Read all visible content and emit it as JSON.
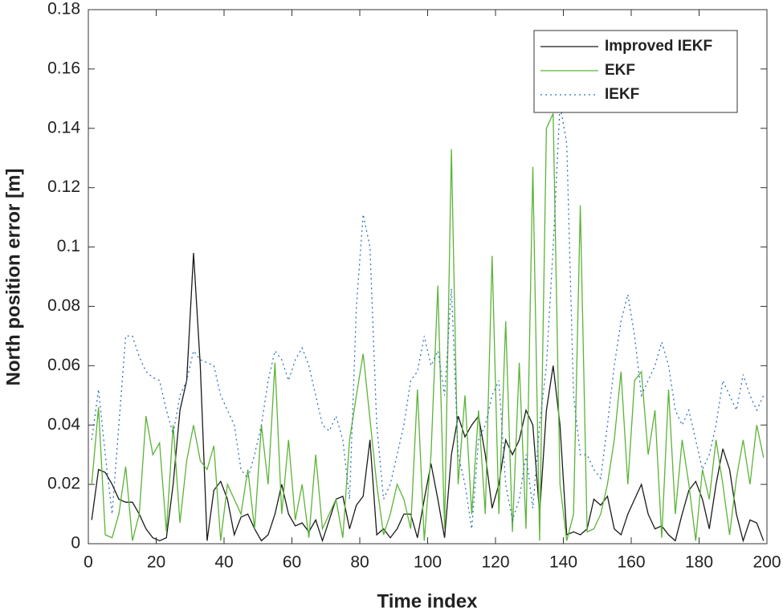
{
  "chart_data": {
    "type": "line",
    "xlabel": "Time index",
    "ylabel": "North position error [m]",
    "x": [
      1,
      3,
      5,
      7,
      9,
      11,
      13,
      15,
      17,
      19,
      21,
      23,
      25,
      27,
      29,
      31,
      33,
      35,
      37,
      39,
      41,
      43,
      45,
      47,
      49,
      51,
      53,
      55,
      57,
      59,
      61,
      63,
      65,
      67,
      69,
      71,
      73,
      75,
      77,
      79,
      81,
      83,
      85,
      87,
      89,
      91,
      93,
      95,
      97,
      99,
      101,
      103,
      105,
      107,
      109,
      111,
      113,
      115,
      117,
      119,
      121,
      123,
      125,
      127,
      129,
      131,
      133,
      135,
      137,
      139,
      141,
      143,
      145,
      147,
      149,
      151,
      153,
      155,
      157,
      159,
      161,
      163,
      165,
      167,
      169,
      171,
      173,
      175,
      177,
      179,
      181,
      183,
      185,
      187,
      189,
      191,
      193,
      195,
      197,
      199
    ],
    "series": [
      {
        "name": "Improved IEKF",
        "color": "#1a1a1a",
        "dash": "solid",
        "values": [
          0.008,
          0.025,
          0.024,
          0.02,
          0.015,
          0.014,
          0.014,
          0.01,
          0.005,
          0.002,
          0.001,
          0.002,
          0.02,
          0.045,
          0.055,
          0.098,
          0.06,
          0.001,
          0.018,
          0.021,
          0.015,
          0.003,
          0.009,
          0.01,
          0.005,
          0.001,
          0.003,
          0.01,
          0.02,
          0.01,
          0.006,
          0.007,
          0.004,
          0.008,
          0.001,
          0.008,
          0.015,
          0.016,
          0.005,
          0.013,
          0.016,
          0.035,
          0.003,
          0.005,
          0.002,
          0.005,
          0.01,
          0.01,
          0.002,
          0.015,
          0.027,
          0.015,
          0.002,
          0.03,
          0.043,
          0.036,
          0.04,
          0.043,
          0.03,
          0.012,
          0.02,
          0.035,
          0.03,
          0.035,
          0.045,
          0.04,
          0.01,
          0.045,
          0.06,
          0.04,
          0.003,
          0.004,
          0.003,
          0.005,
          0.015,
          0.013,
          0.016,
          0.005,
          0.003,
          0.01,
          0.015,
          0.02,
          0.01,
          0.005,
          0.006,
          0.003,
          0.001,
          0.01,
          0.018,
          0.021,
          0.015,
          0.005,
          0.02,
          0.032,
          0.025,
          0.01,
          0.001,
          0.008,
          0.007,
          0.001
        ]
      },
      {
        "name": "EKF",
        "color": "#5cb338",
        "dash": "solid",
        "values": [
          0.02,
          0.046,
          0.003,
          0.002,
          0.01,
          0.026,
          0.001,
          0.01,
          0.043,
          0.03,
          0.034,
          0.004,
          0.04,
          0.007,
          0.028,
          0.04,
          0.028,
          0.025,
          0.033,
          0.001,
          0.02,
          0.015,
          0.01,
          0.025,
          0.005,
          0.04,
          0.02,
          0.061,
          0.01,
          0.035,
          0.008,
          0.02,
          0.002,
          0.03,
          0.005,
          0.01,
          0.015,
          0.002,
          0.035,
          0.05,
          0.064,
          0.042,
          0.02,
          0.003,
          0.01,
          0.02,
          0.015,
          0.005,
          0.052,
          0.001,
          0.03,
          0.087,
          0.005,
          0.133,
          0.02,
          0.05,
          0.01,
          0.045,
          0.01,
          0.097,
          0.01,
          0.075,
          0.004,
          0.061,
          0.005,
          0.127,
          0.001,
          0.14,
          0.145,
          0.02,
          0.001,
          0.01,
          0.114,
          0.004,
          0.005,
          0.01,
          0.02,
          0.035,
          0.058,
          0.02,
          0.055,
          0.058,
          0.03,
          0.045,
          0.002,
          0.052,
          0.01,
          0.035,
          0.02,
          0.001,
          0.025,
          0.015,
          0.035,
          0.02,
          0.003,
          0.022,
          0.035,
          0.02,
          0.04,
          0.029
        ]
      },
      {
        "name": "IEKF",
        "color": "#2e6fc4",
        "dash": "dotted",
        "values": [
          0.035,
          0.052,
          0.03,
          0.01,
          0.04,
          0.07,
          0.07,
          0.063,
          0.058,
          0.056,
          0.055,
          0.045,
          0.037,
          0.05,
          0.055,
          0.065,
          0.062,
          0.061,
          0.06,
          0.05,
          0.045,
          0.04,
          0.025,
          0.022,
          0.03,
          0.04,
          0.055,
          0.065,
          0.062,
          0.055,
          0.062,
          0.066,
          0.06,
          0.05,
          0.04,
          0.038,
          0.043,
          0.035,
          0.015,
          0.08,
          0.111,
          0.1,
          0.04,
          0.015,
          0.02,
          0.03,
          0.04,
          0.055,
          0.058,
          0.07,
          0.06,
          0.065,
          0.05,
          0.086,
          0.03,
          0.02,
          0.005,
          0.035,
          0.04,
          0.05,
          0.055,
          0.02,
          0.008,
          0.015,
          0.03,
          0.012,
          0.04,
          0.06,
          0.1,
          0.148,
          0.135,
          0.05,
          0.03,
          0.03,
          0.025,
          0.022,
          0.04,
          0.06,
          0.075,
          0.084,
          0.07,
          0.05,
          0.055,
          0.06,
          0.068,
          0.06,
          0.045,
          0.04,
          0.045,
          0.035,
          0.025,
          0.03,
          0.04,
          0.055,
          0.05,
          0.045,
          0.057,
          0.05,
          0.045,
          0.05
        ]
      }
    ],
    "xlim": [
      0,
      200
    ],
    "xticks": [
      0,
      20,
      40,
      60,
      80,
      100,
      120,
      140,
      160,
      180,
      200
    ],
    "ylim": [
      0,
      0.18
    ],
    "yticks": [
      0,
      0.02,
      0.04,
      0.06,
      0.08,
      0.1,
      0.12,
      0.14,
      0.16,
      0.18
    ],
    "grid": false,
    "legend": "top right"
  }
}
